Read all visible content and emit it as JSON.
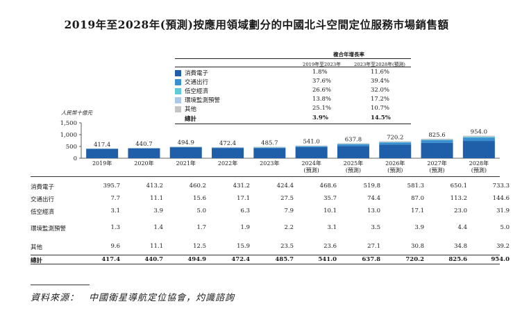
{
  "title": "2019年至2028年(預測)按應用領域劃分的中國北斗空間定位服務市場銷售額",
  "cagr": {
    "title": "複合年增長率",
    "col1": "2019年至2023年",
    "col2": "2023年至2028年(預測)"
  },
  "legend": [
    {
      "name": "消費電子",
      "color": "#1f5ea8",
      "cagr1": "1.8%",
      "cagr2": "11.6%"
    },
    {
      "name": "交通出行",
      "color": "#3a8fd0",
      "cagr1": "37.6%",
      "cagr2": "39.4%"
    },
    {
      "name": "低空經濟",
      "color": "#5fcbd8",
      "cagr1": "26.6%",
      "cagr2": "32.0%"
    },
    {
      "name": "環境監測預警",
      "color": "#a9c9e6",
      "cagr1": "13.8%",
      "cagr2": "17.2%"
    },
    {
      "name": "其他",
      "color": "#c4c4c4",
      "cagr1": "25.1%",
      "cagr2": "10.7%"
    }
  ],
  "legend_total": {
    "name": "總計",
    "cagr1": "3.9%",
    "cagr2": "14.5%"
  },
  "chart_data": {
    "type": "bar",
    "stacked": true,
    "ylabel": "人民幣十億元",
    "ylim": [
      0,
      1500
    ],
    "yticks": [
      "1,500",
      "1,000",
      "500",
      "0"
    ],
    "ytick_values": [
      1500,
      1000,
      500,
      0
    ],
    "categories": [
      "2019年",
      "2020年",
      "2021年",
      "2022年",
      "2023年",
      "2024年\n(預測)",
      "2025年\n(預測)",
      "2026年\n(預測)",
      "2027年\n(預測)",
      "2028年\n(預測)"
    ],
    "category_lines": [
      [
        "2019年"
      ],
      [
        "2020年"
      ],
      [
        "2021年"
      ],
      [
        "2022年"
      ],
      [
        "2023年"
      ],
      [
        "2024年",
        "(預測)"
      ],
      [
        "2025年",
        "(預測)"
      ],
      [
        "2026年",
        "(預測)"
      ],
      [
        "2027年",
        "(預測)"
      ],
      [
        "2028年",
        "(預測)"
      ]
    ],
    "series": [
      {
        "name": "消費電子",
        "values": [
          395.7,
          413.2,
          460.2,
          431.2,
          424.4,
          468.6,
          519.8,
          581.3,
          650.1,
          733.3
        ]
      },
      {
        "name": "交通出行",
        "values": [
          7.7,
          11.1,
          15.6,
          17.1,
          27.5,
          35.7,
          74.4,
          87.0,
          113.2,
          144.6
        ]
      },
      {
        "name": "低空經濟",
        "values": [
          3.1,
          3.9,
          5.0,
          6.3,
          7.9,
          10.1,
          13.0,
          17.1,
          23.0,
          31.9
        ]
      },
      {
        "name": "環境監測預警",
        "values": [
          1.3,
          1.4,
          1.7,
          1.9,
          2.2,
          3.1,
          3.5,
          3.9,
          4.4,
          5.0
        ]
      },
      {
        "name": "其他",
        "values": [
          9.6,
          11.1,
          12.5,
          15.9,
          23.5,
          23.6,
          27.1,
          30.8,
          34.8,
          39.2
        ]
      }
    ],
    "totals": [
      417.4,
      440.7,
      494.9,
      472.4,
      485.7,
      541.0,
      637.8,
      720.2,
      825.6,
      954.0
    ],
    "total_labels": [
      "417.4",
      "440.7",
      "494.9",
      "472.4",
      "485.7",
      "541.0",
      "637.8",
      "720.2",
      "825.6",
      "954.0"
    ]
  },
  "table": {
    "rows": [
      {
        "label": "消費電子",
        "values": [
          "395.7",
          "413.2",
          "460.2",
          "431.2",
          "424.4",
          "468.6",
          "519.8",
          "581.3",
          "650.1",
          "733.3"
        ]
      },
      {
        "label": "交通出行",
        "values": [
          "7.7",
          "11.1",
          "15.6",
          "17.1",
          "27.5",
          "35.7",
          "74.4",
          "87.0",
          "113.2",
          "144.6"
        ]
      },
      {
        "label": "低空經濟",
        "values": [
          "3.1",
          "3.9",
          "5.0",
          "6.3",
          "7.9",
          "10.1",
          "13.0",
          "17.1",
          "23.0",
          "31.9"
        ]
      },
      {
        "label": "環境監測預警",
        "values": [
          "1.3",
          "1.4",
          "1.7",
          "1.9",
          "2.2",
          "3.1",
          "3.5",
          "3.9",
          "4.4",
          "5.0"
        ]
      },
      {
        "label": "其他",
        "values": [
          "9.6",
          "11.1",
          "12.5",
          "15.9",
          "23.5",
          "23.6",
          "27.1",
          "30.8",
          "34.8",
          "39.2"
        ]
      },
      {
        "label": "總計",
        "values": [
          "417.4",
          "440.7",
          "494.9",
          "472.4",
          "485.7",
          "541.0",
          "637.8",
          "720.2",
          "825.6",
          "954.0"
        ]
      }
    ]
  },
  "source": "資料來源：　中國衛星導航定位協會，灼識諮詢"
}
